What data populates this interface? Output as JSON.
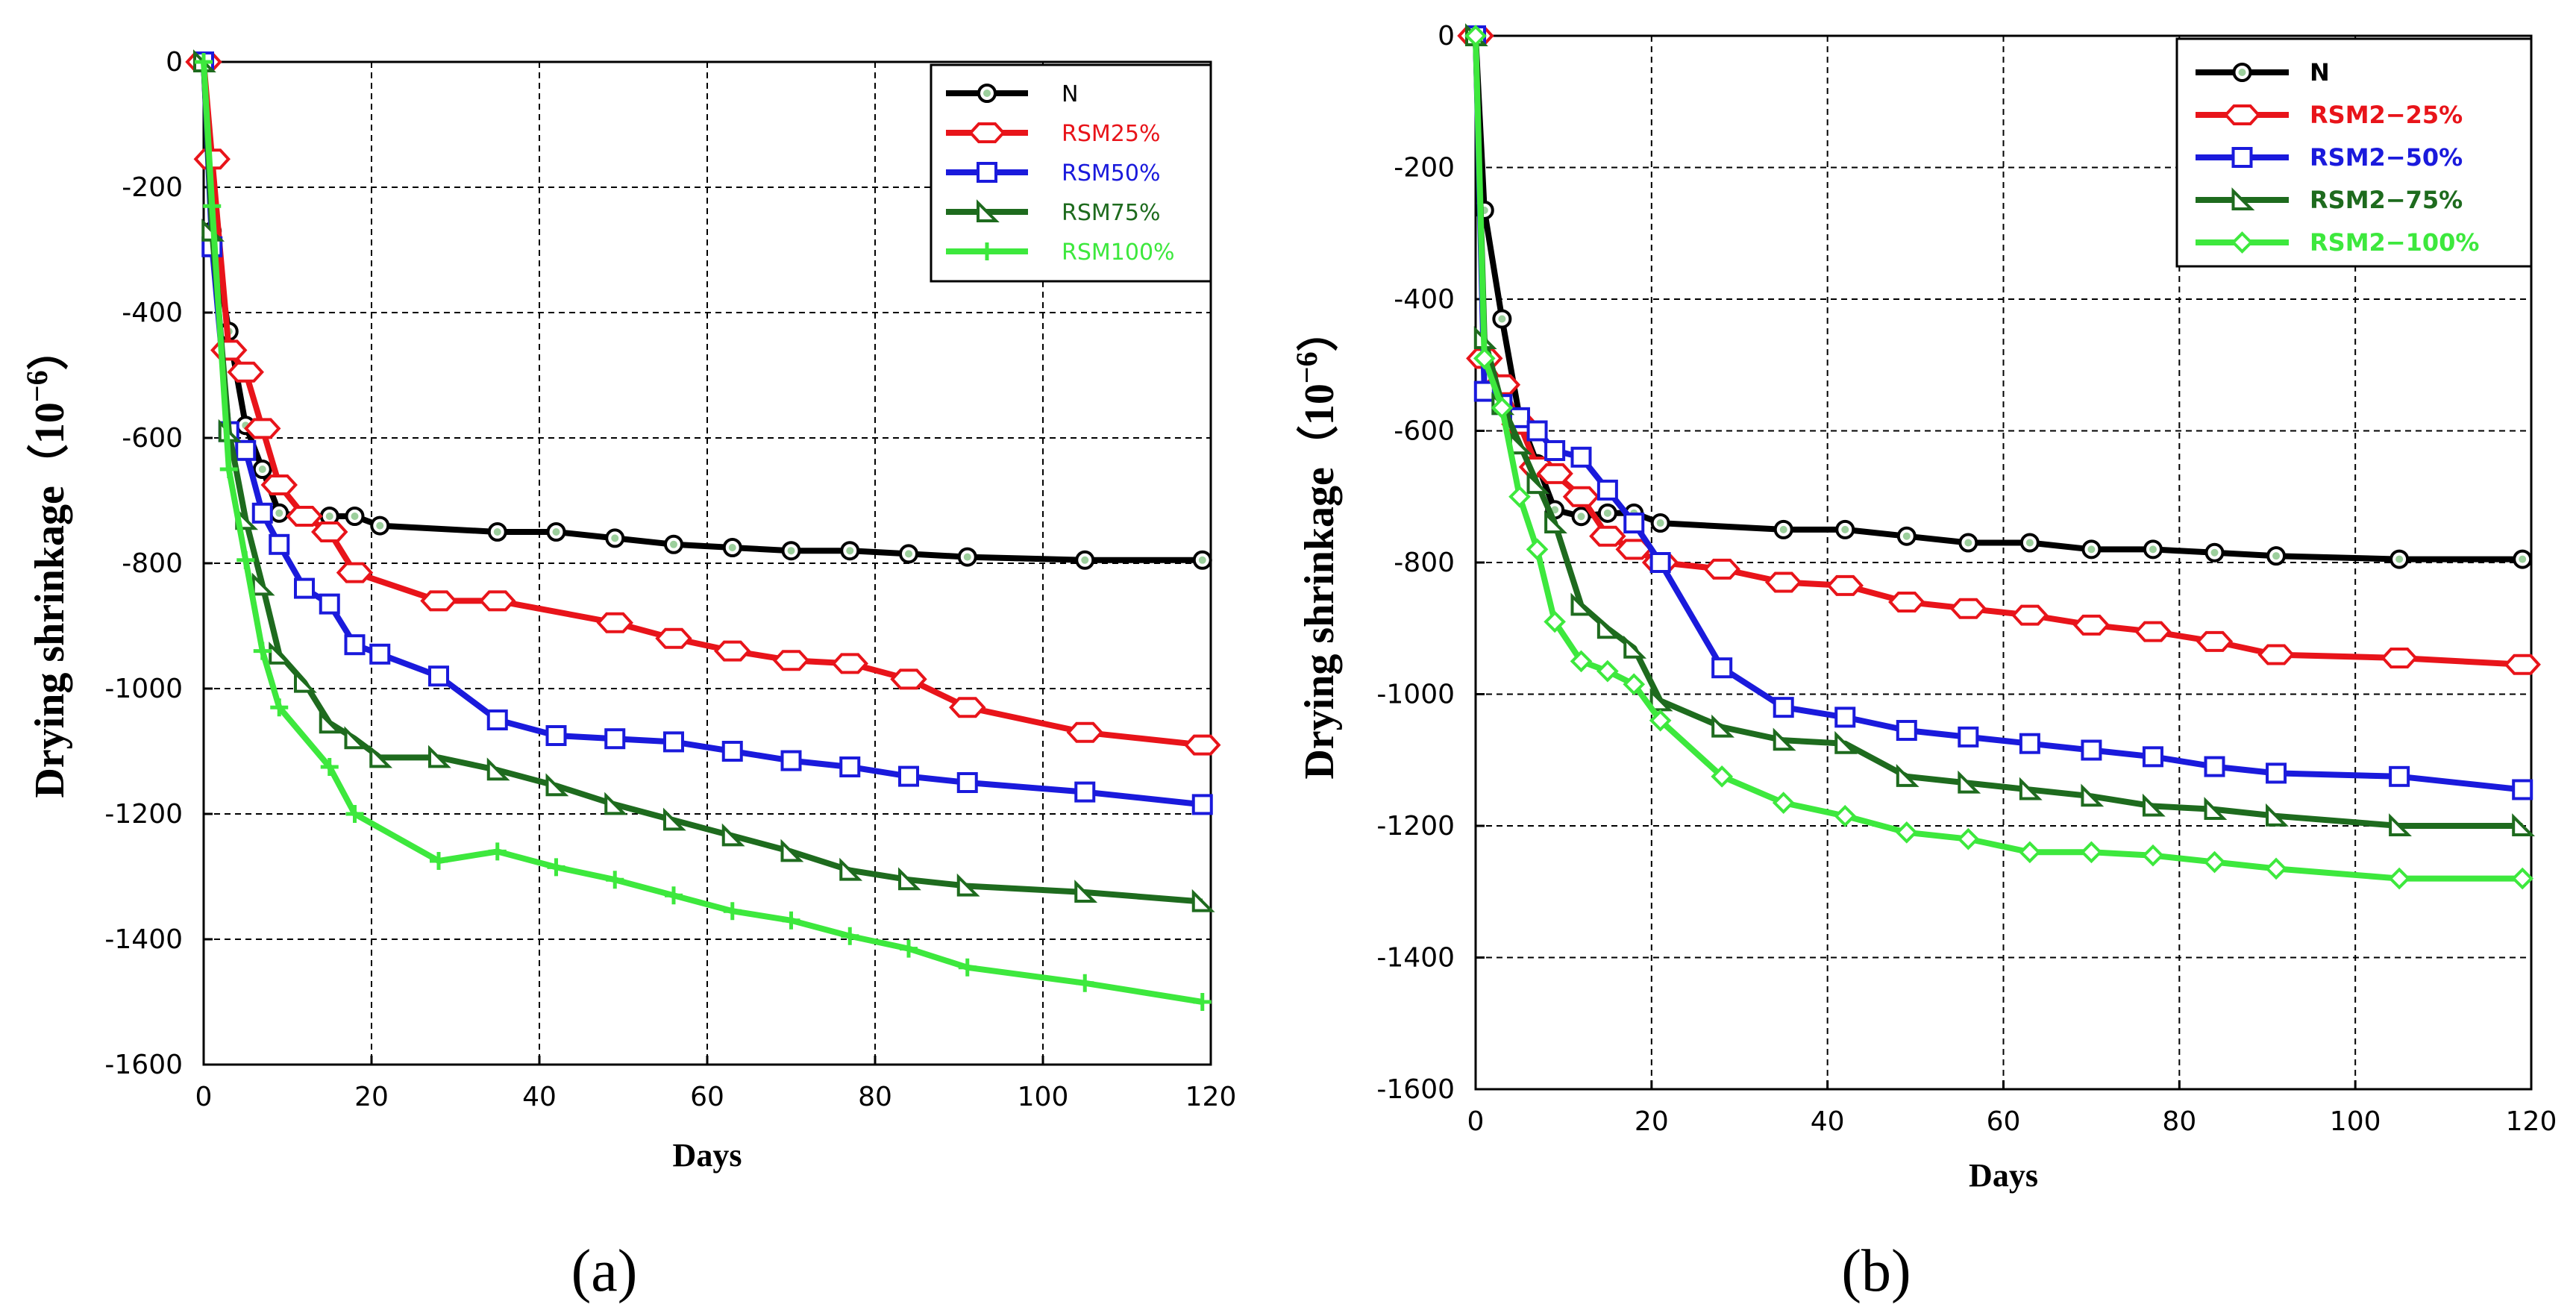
{
  "panel_labels": [
    "(a)",
    "(b)"
  ],
  "chart_data": [
    {
      "type": "line",
      "panel": "(a)",
      "xlabel": "Days",
      "ylabel": "Drying shrinkage（10",
      "ylabel_exp": "−6",
      "ylabel_close": "）",
      "xlim": [
        0,
        120
      ],
      "ylim": [
        -1600,
        0
      ],
      "xticks": [
        0,
        20,
        40,
        60,
        80,
        100,
        120
      ],
      "yticks": [
        0,
        -200,
        -400,
        -600,
        -800,
        -1000,
        -1200,
        -1400,
        -1600
      ],
      "grid": true,
      "legend_position": "top-right",
      "legend_bold": false,
      "series": [
        {
          "name": "N",
          "color": "#000000",
          "marker": "circle",
          "x": [
            0,
            1,
            3,
            5,
            7,
            9,
            12,
            15,
            18,
            21,
            35,
            42,
            49,
            56,
            63,
            70,
            77,
            84,
            91,
            105,
            119
          ],
          "y": [
            0,
            -270,
            -430,
            -580,
            -650,
            -720,
            -725,
            -725,
            -725,
            -740,
            -750,
            -750,
            -760,
            -770,
            -775,
            -780,
            -780,
            -785,
            -790,
            -795,
            -795
          ]
        },
        {
          "name": "RSM25%",
          "color": "#e8141a",
          "marker": "hexagon",
          "x": [
            0,
            1,
            3,
            5,
            7,
            9,
            12,
            15,
            18,
            28,
            35,
            49,
            56,
            63,
            70,
            77,
            84,
            91,
            105,
            119
          ],
          "y": [
            0,
            -155,
            -460,
            -495,
            -585,
            -675,
            -725,
            -750,
            -815,
            -860,
            -860,
            -895,
            -920,
            -940,
            -955,
            -960,
            -985,
            -1030,
            -1070,
            -1090
          ]
        },
        {
          "name": "RSM50%",
          "color": "#1a1adc",
          "marker": "square",
          "x": [
            0,
            1,
            3,
            5,
            7,
            9,
            12,
            15,
            18,
            21,
            28,
            35,
            42,
            49,
            56,
            63,
            70,
            77,
            84,
            91,
            105,
            119
          ],
          "y": [
            0,
            -295,
            -590,
            -620,
            -720,
            -770,
            -840,
            -865,
            -930,
            -945,
            -980,
            -1050,
            -1075,
            -1080,
            -1085,
            -1100,
            -1115,
            -1125,
            -1140,
            -1150,
            -1165,
            -1185
          ]
        },
        {
          "name": "RSM75%",
          "color": "#1e6b1e",
          "marker": "triangle",
          "x": [
            0,
            1,
            3,
            5,
            7,
            9,
            12,
            15,
            18,
            21,
            28,
            35,
            42,
            49,
            56,
            63,
            70,
            77,
            84,
            91,
            105,
            119
          ],
          "y": [
            0,
            -270,
            -590,
            -730,
            -835,
            -945,
            -990,
            -1055,
            -1080,
            -1110,
            -1110,
            -1130,
            -1155,
            -1185,
            -1210,
            -1235,
            -1260,
            -1290,
            -1305,
            -1315,
            -1325,
            -1340
          ]
        },
        {
          "name": "RSM100%",
          "color": "#3de83d",
          "marker": "plus",
          "x": [
            0,
            1,
            3,
            5,
            7,
            9,
            15,
            18,
            28,
            35,
            42,
            49,
            56,
            63,
            70,
            77,
            84,
            91,
            105,
            119
          ],
          "y": [
            0,
            -230,
            -650,
            -795,
            -940,
            -1030,
            -1125,
            -1200,
            -1275,
            -1260,
            -1285,
            -1305,
            -1330,
            -1355,
            -1370,
            -1395,
            -1415,
            -1445,
            -1470,
            -1500
          ]
        }
      ]
    },
    {
      "type": "line",
      "panel": "(b)",
      "xlabel": "Days",
      "ylabel": "Drying shrinkage（10",
      "ylabel_exp": "−6",
      "ylabel_close": "）",
      "xlim": [
        0,
        120
      ],
      "ylim": [
        -1600,
        0
      ],
      "xticks": [
        0,
        20,
        40,
        60,
        80,
        100,
        120
      ],
      "yticks": [
        0,
        -200,
        -400,
        -600,
        -800,
        -1000,
        -1200,
        -1400,
        -1600
      ],
      "grid": true,
      "legend_position": "top-right",
      "legend_bold": true,
      "series": [
        {
          "name": "N",
          "color": "#000000",
          "marker": "circle",
          "x": [
            0,
            1,
            3,
            5,
            7,
            9,
            12,
            15,
            18,
            21,
            35,
            42,
            49,
            56,
            63,
            70,
            77,
            84,
            91,
            105,
            119
          ],
          "y": [
            0,
            -265,
            -430,
            -580,
            -650,
            -720,
            -730,
            -725,
            -725,
            -740,
            -750,
            -750,
            -760,
            -770,
            -770,
            -780,
            -780,
            -785,
            -790,
            -795,
            -795
          ]
        },
        {
          "name": "RSM2−25%",
          "color": "#e8141a",
          "marker": "hexagon",
          "x": [
            0,
            1,
            3,
            5,
            7,
            9,
            12,
            15,
            18,
            21,
            28,
            35,
            42,
            49,
            56,
            63,
            70,
            77,
            84,
            91,
            105,
            119
          ],
          "y": [
            0,
            -490,
            -530,
            -590,
            -655,
            -665,
            -700,
            -760,
            -780,
            -800,
            -810,
            -830,
            -835,
            -860,
            -870,
            -880,
            -895,
            -905,
            -920,
            -940,
            -945,
            -955
          ]
        },
        {
          "name": "RSM2−50%",
          "color": "#1a1adc",
          "marker": "square",
          "x": [
            0,
            1,
            3,
            5,
            7,
            9,
            12,
            15,
            18,
            21,
            28,
            35,
            42,
            49,
            56,
            63,
            70,
            77,
            84,
            91,
            105,
            119
          ],
          "y": [
            0,
            -540,
            -560,
            -580,
            -600,
            -630,
            -640,
            -690,
            -740,
            -800,
            -960,
            -1020,
            -1035,
            -1055,
            -1065,
            -1075,
            -1085,
            -1095,
            -1110,
            -1120,
            -1125,
            -1145
          ]
        },
        {
          "name": "RSM2−75%",
          "color": "#1e6b1e",
          "marker": "triangle",
          "x": [
            0,
            1,
            3,
            5,
            7,
            9,
            12,
            15,
            18,
            21,
            28,
            35,
            42,
            49,
            56,
            63,
            70,
            77,
            84,
            91,
            105,
            119
          ],
          "y": [
            0,
            -460,
            -560,
            -620,
            -680,
            -740,
            -865,
            -900,
            -930,
            -1010,
            -1050,
            -1070,
            -1075,
            -1125,
            -1135,
            -1145,
            -1155,
            -1170,
            -1175,
            -1185,
            -1200,
            -1200
          ]
        },
        {
          "name": "RSM2−100%",
          "color": "#3de83d",
          "marker": "diamond",
          "x": [
            0,
            1,
            3,
            5,
            7,
            9,
            12,
            15,
            18,
            21,
            28,
            35,
            42,
            49,
            56,
            63,
            70,
            77,
            84,
            91,
            105,
            119
          ],
          "y": [
            0,
            -490,
            -565,
            -700,
            -780,
            -890,
            -950,
            -965,
            -985,
            -1040,
            -1125,
            -1165,
            -1185,
            -1210,
            -1220,
            -1240,
            -1240,
            -1245,
            -1255,
            -1265,
            -1280,
            -1280
          ]
        }
      ]
    }
  ]
}
